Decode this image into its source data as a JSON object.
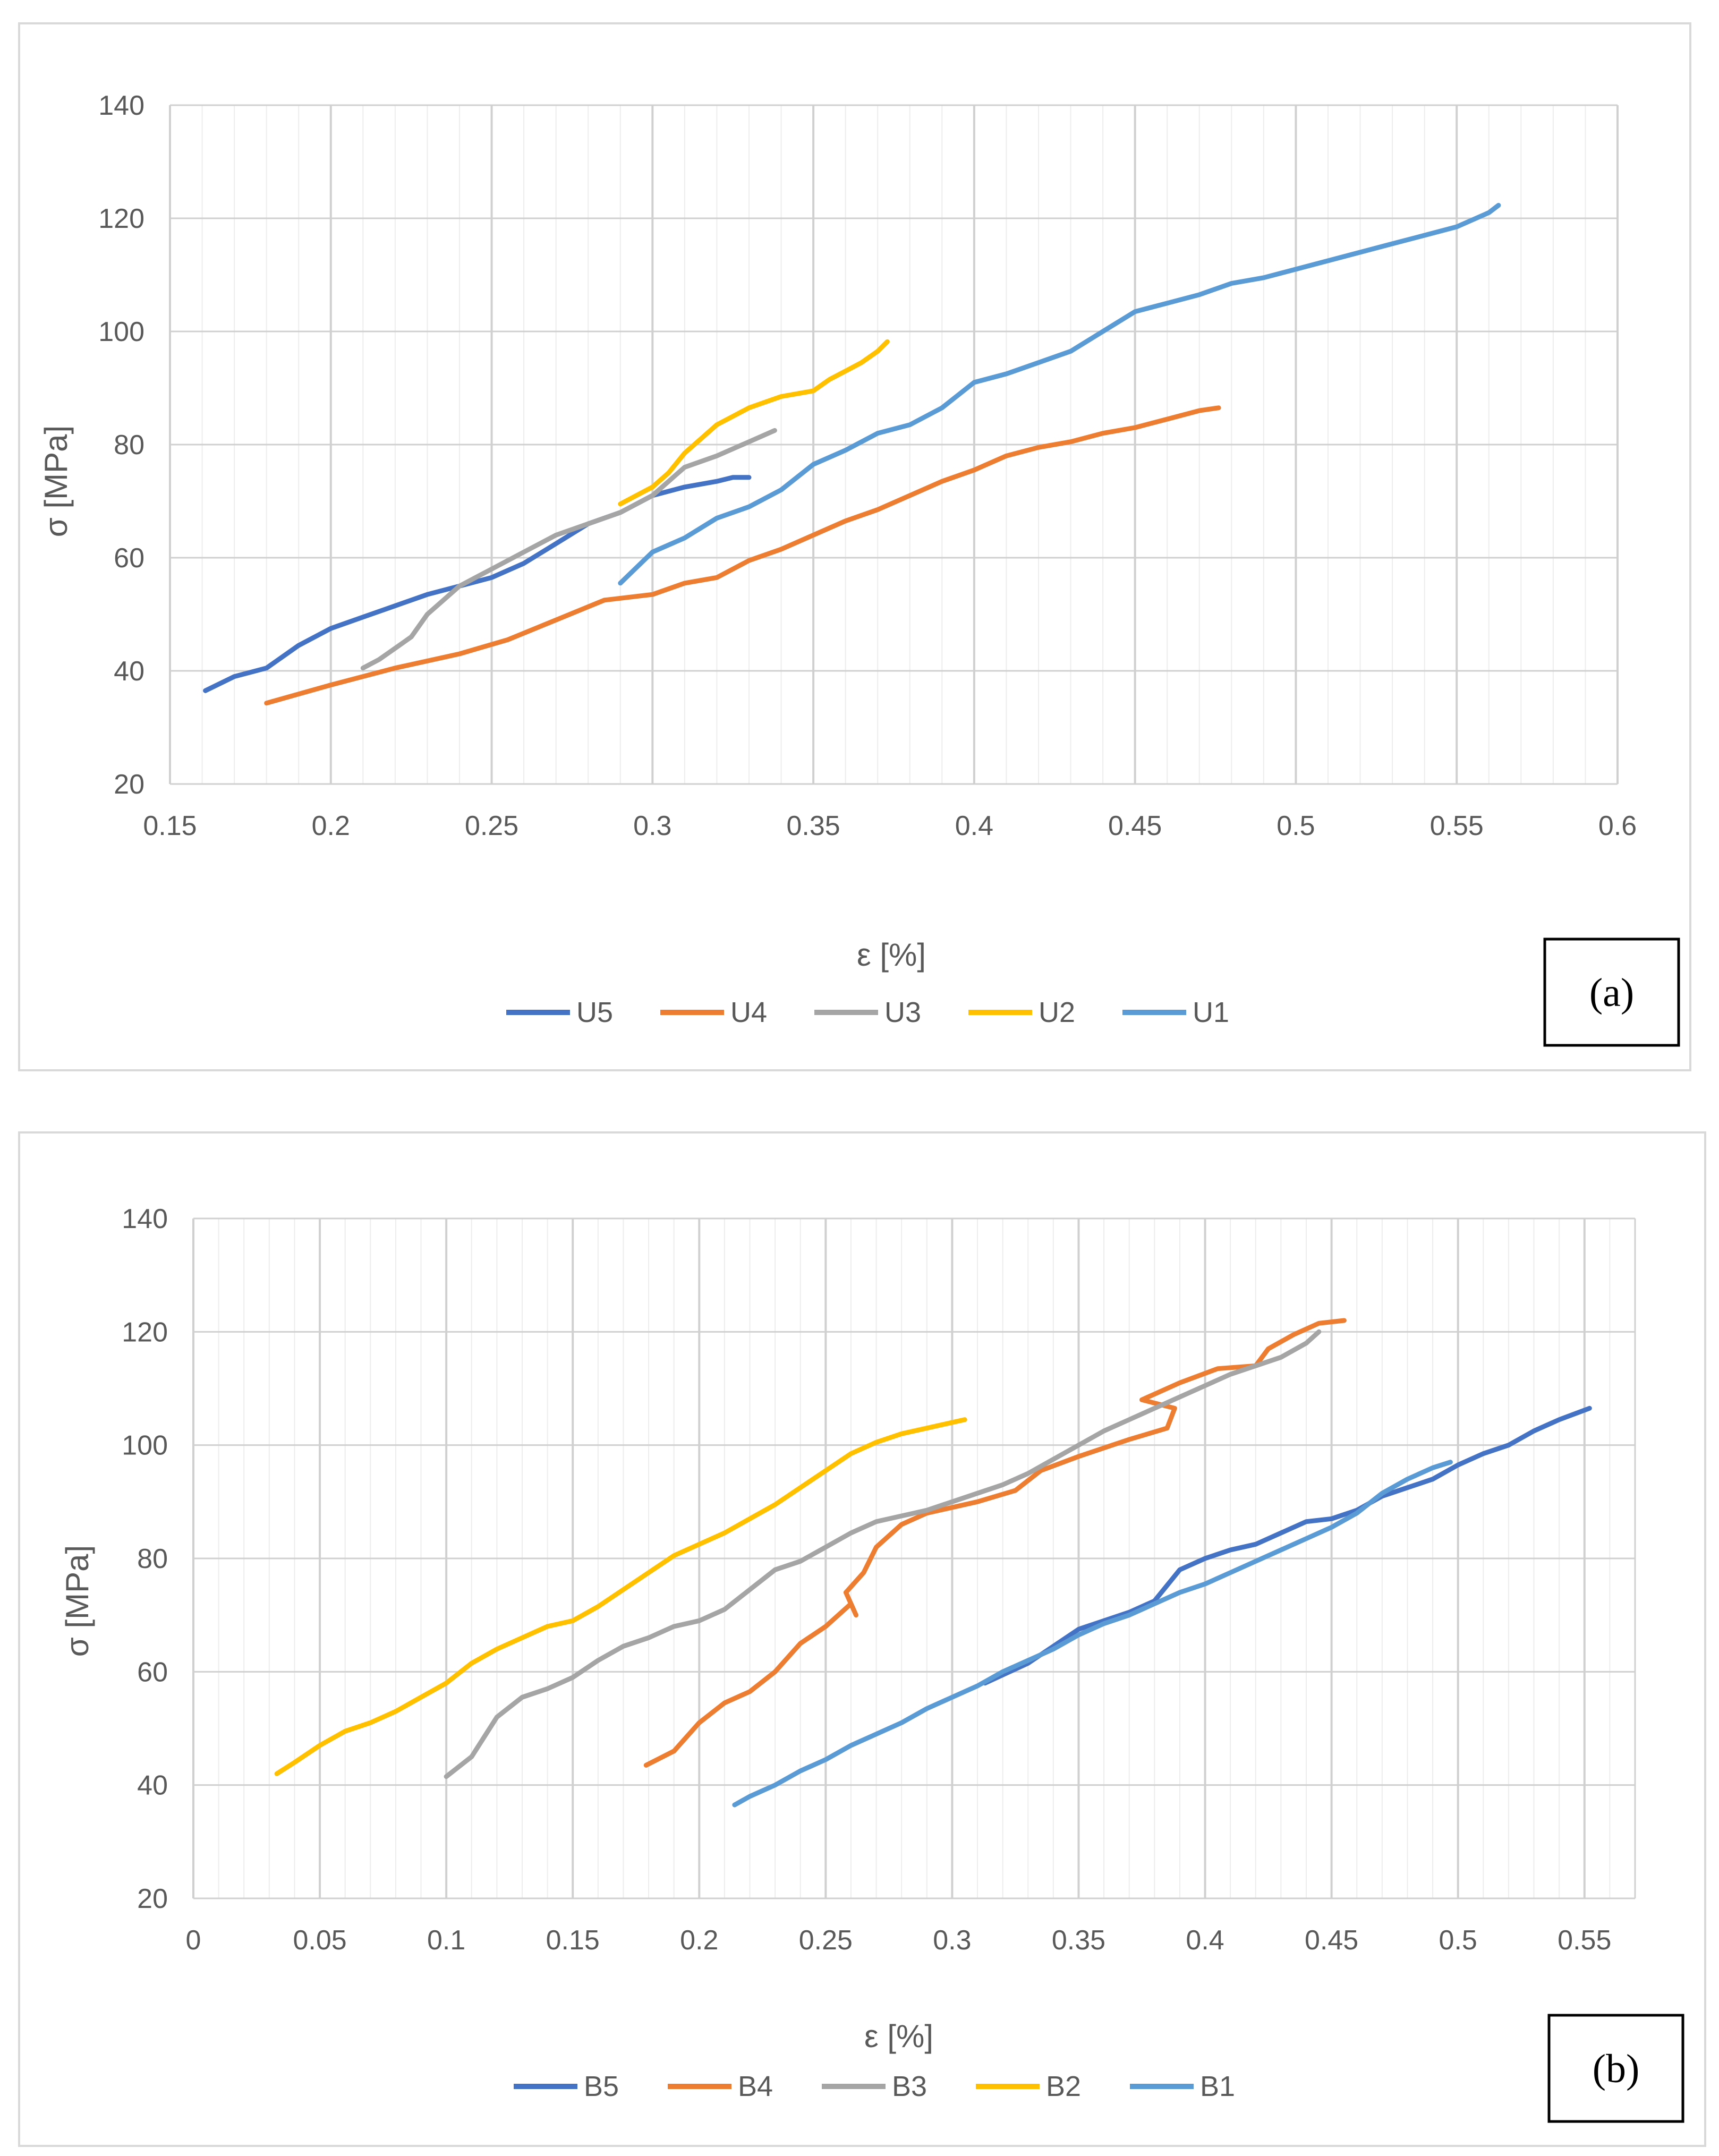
{
  "chart_data": [
    {
      "type": "line",
      "panel_label": "(a)",
      "xlabel": "ε [%]",
      "ylabel": "σ [MPa]",
      "xlim": [
        0.15,
        0.6
      ],
      "ylim": [
        20,
        140
      ],
      "xticks": [
        0.15,
        0.2,
        0.25,
        0.3,
        0.35,
        0.4,
        0.45,
        0.5,
        0.55,
        0.6
      ],
      "xtick_labels": [
        "0.15",
        "0.2",
        "0.25",
        "0.3",
        "0.35",
        "0.4",
        "0.45",
        "0.5",
        "0.55",
        "0.6"
      ],
      "yticks": [
        20,
        40,
        60,
        80,
        100,
        120,
        140
      ],
      "ytick_labels": [
        "20",
        "40",
        "60",
        "80",
        "100",
        "120",
        "140"
      ],
      "minor_x_step": 0.01,
      "grid": true,
      "legend_position": "bottom-center",
      "series": [
        {
          "name": "U5",
          "color": "#4472C4",
          "x": [
            0.161,
            0.17,
            0.18,
            0.19,
            0.2,
            0.21,
            0.22,
            0.23,
            0.24,
            0.25,
            0.26,
            0.27,
            0.28,
            0.29,
            0.3,
            0.31,
            0.32,
            0.325,
            0.33
          ],
          "y": [
            36.5,
            39,
            40.5,
            44.5,
            47.5,
            49.5,
            51.5,
            53.5,
            55,
            56.5,
            59,
            62.5,
            66,
            68,
            71,
            72.5,
            73.5,
            74.2,
            74.2
          ]
        },
        {
          "name": "U4",
          "color": "#ED7D31",
          "x": [
            0.18,
            0.2,
            0.22,
            0.24,
            0.255,
            0.27,
            0.285,
            0.3,
            0.31,
            0.32,
            0.33,
            0.34,
            0.35,
            0.36,
            0.37,
            0.38,
            0.39,
            0.4,
            0.41,
            0.42,
            0.43,
            0.44,
            0.45,
            0.46,
            0.47,
            0.476
          ],
          "y": [
            34.3,
            37.5,
            40.5,
            43,
            45.5,
            49,
            52.5,
            53.5,
            55.5,
            56.5,
            59.5,
            61.5,
            64,
            66.5,
            68.5,
            71,
            73.5,
            75.5,
            78,
            79.5,
            80.5,
            82,
            83,
            84.5,
            86,
            86.5
          ]
        },
        {
          "name": "U3",
          "color": "#A5A5A5",
          "x": [
            0.21,
            0.215,
            0.22,
            0.225,
            0.23,
            0.24,
            0.25,
            0.26,
            0.27,
            0.28,
            0.29,
            0.3,
            0.305,
            0.31,
            0.32,
            0.33,
            0.338
          ],
          "y": [
            40.5,
            42,
            44,
            46,
            50,
            55,
            58,
            61,
            64,
            66,
            68,
            71,
            73.5,
            76,
            78,
            80.5,
            82.5
          ]
        },
        {
          "name": "U2",
          "color": "#FFC000",
          "x": [
            0.29,
            0.3,
            0.305,
            0.31,
            0.315,
            0.32,
            0.325,
            0.33,
            0.335,
            0.34,
            0.345,
            0.35,
            0.355,
            0.36,
            0.365,
            0.37,
            0.373
          ],
          "y": [
            69.5,
            72.5,
            75,
            78.5,
            81,
            83.5,
            85,
            86.5,
            87.5,
            88.5,
            89,
            89.5,
            91.5,
            93,
            94.5,
            96.5,
            98.2
          ]
        },
        {
          "name": "U1",
          "color": "#5B9BD5",
          "x": [
            0.29,
            0.3,
            0.31,
            0.32,
            0.33,
            0.34,
            0.35,
            0.36,
            0.37,
            0.38,
            0.39,
            0.4,
            0.41,
            0.42,
            0.43,
            0.44,
            0.45,
            0.46,
            0.47,
            0.48,
            0.49,
            0.5,
            0.51,
            0.52,
            0.53,
            0.54,
            0.55,
            0.56,
            0.563
          ],
          "y": [
            55.5,
            61,
            63.5,
            67,
            69,
            72,
            76.5,
            79,
            82,
            83.5,
            86.5,
            91,
            92.5,
            94.5,
            96.5,
            100,
            103.5,
            105,
            106.5,
            108.5,
            109.5,
            111,
            112.5,
            114,
            115.5,
            117,
            118.5,
            121,
            122.3
          ]
        }
      ]
    },
    {
      "type": "line",
      "panel_label": "(b)",
      "xlabel": "ε [%]",
      "ylabel": "σ [MPa]",
      "xlim": [
        0,
        0.57
      ],
      "ylim": [
        20,
        140
      ],
      "xticks": [
        0,
        0.05,
        0.1,
        0.15,
        0.2,
        0.25,
        0.3,
        0.35,
        0.4,
        0.45,
        0.5,
        0.55
      ],
      "xtick_labels": [
        "0",
        "0.05",
        "0.1",
        "0.15",
        "0.2",
        "0.25",
        "0.3",
        "0.35",
        "0.4",
        "0.45",
        "0.5",
        "0.55"
      ],
      "yticks": [
        20,
        40,
        60,
        80,
        100,
        120,
        140
      ],
      "ytick_labels": [
        "20",
        "40",
        "60",
        "80",
        "100",
        "120",
        "140"
      ],
      "minor_x_step": 0.01,
      "grid": true,
      "legend_position": "bottom-center",
      "series": [
        {
          "name": "B5",
          "color": "#4472C4",
          "x": [
            0.313,
            0.33,
            0.35,
            0.36,
            0.37,
            0.38,
            0.39,
            0.4,
            0.41,
            0.42,
            0.43,
            0.44,
            0.45,
            0.46,
            0.47,
            0.48,
            0.49,
            0.5,
            0.51,
            0.52,
            0.53,
            0.54,
            0.552
          ],
          "y": [
            58,
            61.5,
            67.5,
            69,
            70.5,
            72.5,
            78,
            80,
            81.5,
            82.5,
            84.5,
            86.5,
            87,
            88.5,
            91,
            92.5,
            94,
            96.5,
            98.5,
            100,
            102.5,
            104.5,
            106.5
          ]
        },
        {
          "name": "B4",
          "color": "#ED7D31",
          "x": [
            0.179,
            0.19,
            0.2,
            0.21,
            0.22,
            0.23,
            0.24,
            0.25,
            0.26,
            0.262,
            0.258,
            0.265,
            0.27,
            0.28,
            0.29,
            0.31,
            0.325,
            0.335,
            0.35,
            0.37,
            0.385,
            0.388,
            0.375,
            0.39,
            0.405,
            0.42,
            0.425,
            0.435,
            0.445,
            0.455
          ],
          "y": [
            43.5,
            46,
            51,
            54.5,
            56.5,
            60,
            65,
            68,
            72,
            70,
            74,
            77.5,
            82,
            86,
            88,
            90,
            92,
            95.5,
            98,
            101,
            103,
            106.5,
            108,
            111,
            113.5,
            114,
            117,
            119.5,
            121.5,
            122
          ]
        },
        {
          "name": "B3",
          "color": "#A5A5A5",
          "x": [
            0.1,
            0.11,
            0.12,
            0.13,
            0.14,
            0.15,
            0.16,
            0.17,
            0.18,
            0.19,
            0.2,
            0.21,
            0.22,
            0.23,
            0.24,
            0.25,
            0.26,
            0.27,
            0.28,
            0.29,
            0.3,
            0.31,
            0.32,
            0.33,
            0.34,
            0.35,
            0.36,
            0.37,
            0.38,
            0.39,
            0.4,
            0.41,
            0.42,
            0.43,
            0.44,
            0.445
          ],
          "y": [
            41.5,
            45,
            52,
            55.5,
            57,
            59,
            62,
            64.5,
            66,
            68,
            69,
            71,
            74.5,
            78,
            79.5,
            82,
            84.5,
            86.5,
            87.5,
            88.5,
            90,
            91.5,
            93,
            95,
            97.5,
            100,
            102.5,
            104.5,
            106.5,
            108.5,
            110.5,
            112.5,
            114,
            115.5,
            118,
            120
          ]
        },
        {
          "name": "B2",
          "color": "#FFC000",
          "x": [
            0.033,
            0.04,
            0.05,
            0.06,
            0.07,
            0.08,
            0.09,
            0.1,
            0.11,
            0.12,
            0.13,
            0.14,
            0.15,
            0.16,
            0.17,
            0.18,
            0.19,
            0.2,
            0.21,
            0.22,
            0.23,
            0.24,
            0.25,
            0.26,
            0.27,
            0.28,
            0.29,
            0.305
          ],
          "y": [
            42,
            44,
            47,
            49.5,
            51,
            53,
            55.5,
            58,
            61.5,
            64,
            66,
            68,
            69,
            71.5,
            74.5,
            77.5,
            80.5,
            82.5,
            84.5,
            87,
            89.5,
            92.5,
            95.5,
            98.5,
            100.5,
            102,
            103,
            104.5
          ]
        },
        {
          "name": "B1",
          "color": "#5B9BD5",
          "x": [
            0.214,
            0.22,
            0.23,
            0.24,
            0.25,
            0.26,
            0.27,
            0.28,
            0.29,
            0.3,
            0.31,
            0.32,
            0.33,
            0.34,
            0.35,
            0.36,
            0.37,
            0.38,
            0.39,
            0.4,
            0.41,
            0.42,
            0.43,
            0.44,
            0.45,
            0.46,
            0.47,
            0.48,
            0.49,
            0.497
          ],
          "y": [
            36.5,
            38,
            40,
            42.5,
            44.5,
            47,
            49,
            51,
            53.5,
            55.5,
            57.5,
            60,
            62,
            64,
            66.5,
            68.5,
            70,
            72,
            74,
            75.5,
            77.5,
            79.5,
            81.5,
            83.5,
            85.5,
            88,
            91.5,
            94,
            96,
            97
          ]
        }
      ]
    }
  ]
}
